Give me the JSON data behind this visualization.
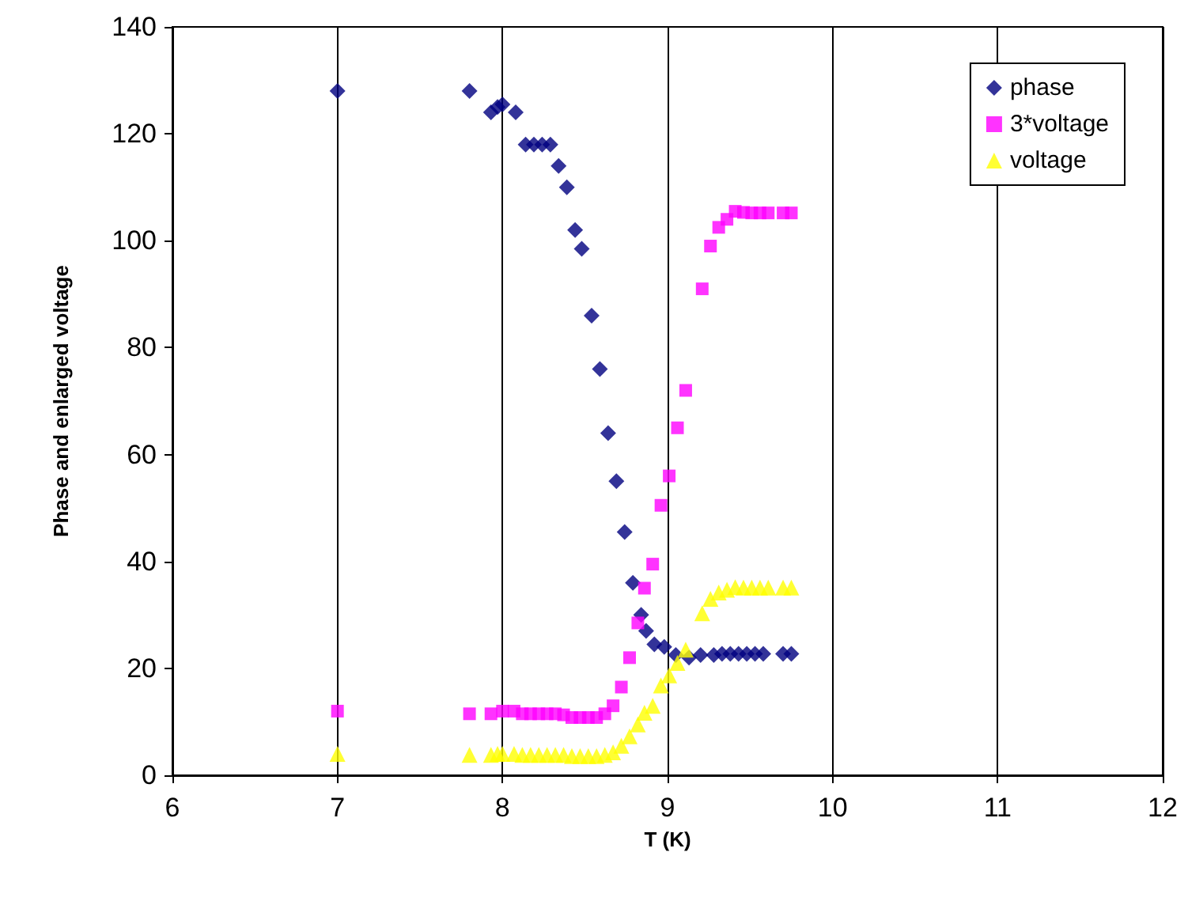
{
  "chart_data": {
    "type": "scatter",
    "xlabel": "T (K)",
    "ylabel": "Phase and enlarged voltage",
    "xlim": [
      6,
      12
    ],
    "xticks": [
      6,
      7,
      8,
      9,
      10,
      11,
      12
    ],
    "ylim": [
      0,
      140
    ],
    "yticks": [
      0,
      20,
      40,
      60,
      80,
      100,
      120,
      140
    ],
    "grid": "x",
    "legend": "top right",
    "series": [
      {
        "name": "phase",
        "color": "#000080",
        "marker": "diamond",
        "x": [
          7,
          7.8,
          7.93,
          7.97,
          8.0,
          8.08,
          8.14,
          8.19,
          8.24,
          8.29,
          8.34,
          8.39,
          8.44,
          8.48,
          8.54,
          8.59,
          8.64,
          8.69,
          8.74,
          8.79,
          8.84,
          8.87,
          8.92,
          8.98,
          9.05,
          9.13,
          9.2,
          9.28,
          9.33,
          9.38,
          9.43,
          9.48,
          9.53,
          9.58,
          9.7,
          9.75
        ],
        "values": [
          128,
          128,
          124,
          125,
          125.5,
          124,
          118,
          118,
          118,
          118,
          114,
          110,
          102,
          98.5,
          86,
          76,
          64,
          55,
          45.5,
          36,
          30,
          27,
          24.5,
          24,
          22.5,
          22,
          22.5,
          22.5,
          22.7,
          22.7,
          22.7,
          22.7,
          22.7,
          22.7,
          22.7,
          22.7
        ]
      },
      {
        "name": "3*voltage",
        "color": "#ff00ff",
        "marker": "square",
        "x": [
          7,
          7.8,
          7.93,
          8.0,
          8.07,
          8.12,
          8.17,
          8.22,
          8.27,
          8.32,
          8.37,
          8.42,
          8.47,
          8.52,
          8.57,
          8.62,
          8.67,
          8.72,
          8.77,
          8.82,
          8.86,
          8.91,
          8.96,
          9.01,
          9.06,
          9.11,
          9.21,
          9.26,
          9.31,
          9.36,
          9.41,
          9.46,
          9.51,
          9.56,
          9.61,
          9.7,
          9.75
        ],
        "values": [
          12,
          11.5,
          11.5,
          12,
          12,
          11.5,
          11.5,
          11.5,
          11.5,
          11.5,
          11.3,
          10.8,
          10.8,
          10.8,
          10.8,
          11.5,
          13,
          16.5,
          22,
          28.5,
          35,
          39.5,
          50.5,
          56,
          65,
          72,
          91,
          99,
          102.5,
          104,
          105.5,
          105.3,
          105.2,
          105.2,
          105.2,
          105.2,
          105.2
        ]
      },
      {
        "name": "voltage",
        "color": "#ffff00",
        "marker": "triangle",
        "x": [
          7,
          7.8,
          7.93,
          7.97,
          8.0,
          8.07,
          8.12,
          8.17,
          8.22,
          8.27,
          8.32,
          8.37,
          8.42,
          8.47,
          8.52,
          8.57,
          8.62,
          8.67,
          8.72,
          8.77,
          8.82,
          8.86,
          8.91,
          8.96,
          9.01,
          9.06,
          9.11,
          9.21,
          9.26,
          9.31,
          9.36,
          9.41,
          9.46,
          9.51,
          9.56,
          9.61,
          9.7,
          9.75
        ],
        "values": [
          4,
          3.8,
          3.8,
          4,
          4,
          4,
          3.8,
          3.8,
          3.8,
          3.8,
          3.8,
          3.8,
          3.6,
          3.6,
          3.6,
          3.6,
          3.8,
          4.3,
          5.5,
          7.3,
          9.5,
          11.7,
          13,
          16.8,
          18.7,
          21,
          23.5,
          30.3,
          33,
          34.2,
          34.7,
          35.2,
          35.1,
          35.1,
          35.1,
          35.1,
          35.1,
          35.1
        ]
      }
    ]
  }
}
